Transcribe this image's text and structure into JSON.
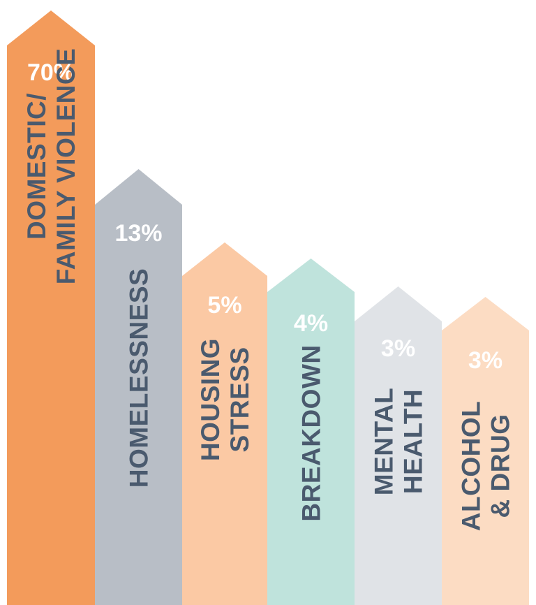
{
  "chart_data": {
    "type": "bar",
    "categories": [
      [
        "DOMESTIC/",
        "FAMILY VIOLENCE"
      ],
      [
        "HOMELESSNESS"
      ],
      [
        "HOUSING",
        "STRESS"
      ],
      [
        "BREAKDOWN"
      ],
      [
        "MENTAL",
        "HEALTH"
      ],
      [
        "ALCOHOL",
        "& DRUG"
      ]
    ],
    "values": [
      70,
      13,
      5,
      4,
      3,
      3
    ],
    "value_labels": [
      "70%",
      "13%",
      "5%",
      "4%",
      "3%",
      "3%"
    ],
    "unit": "%",
    "colors": [
      "#f39b5b",
      "#b8bec6",
      "#fbc9a4",
      "#bfe3dc",
      "#e0e3e7",
      "#fcdcc3"
    ],
    "label_color": "#4a5a6e",
    "value_label_color": "#ffffff",
    "title": "",
    "xlabel": "",
    "ylabel": "",
    "grid": false,
    "legend": "none"
  }
}
